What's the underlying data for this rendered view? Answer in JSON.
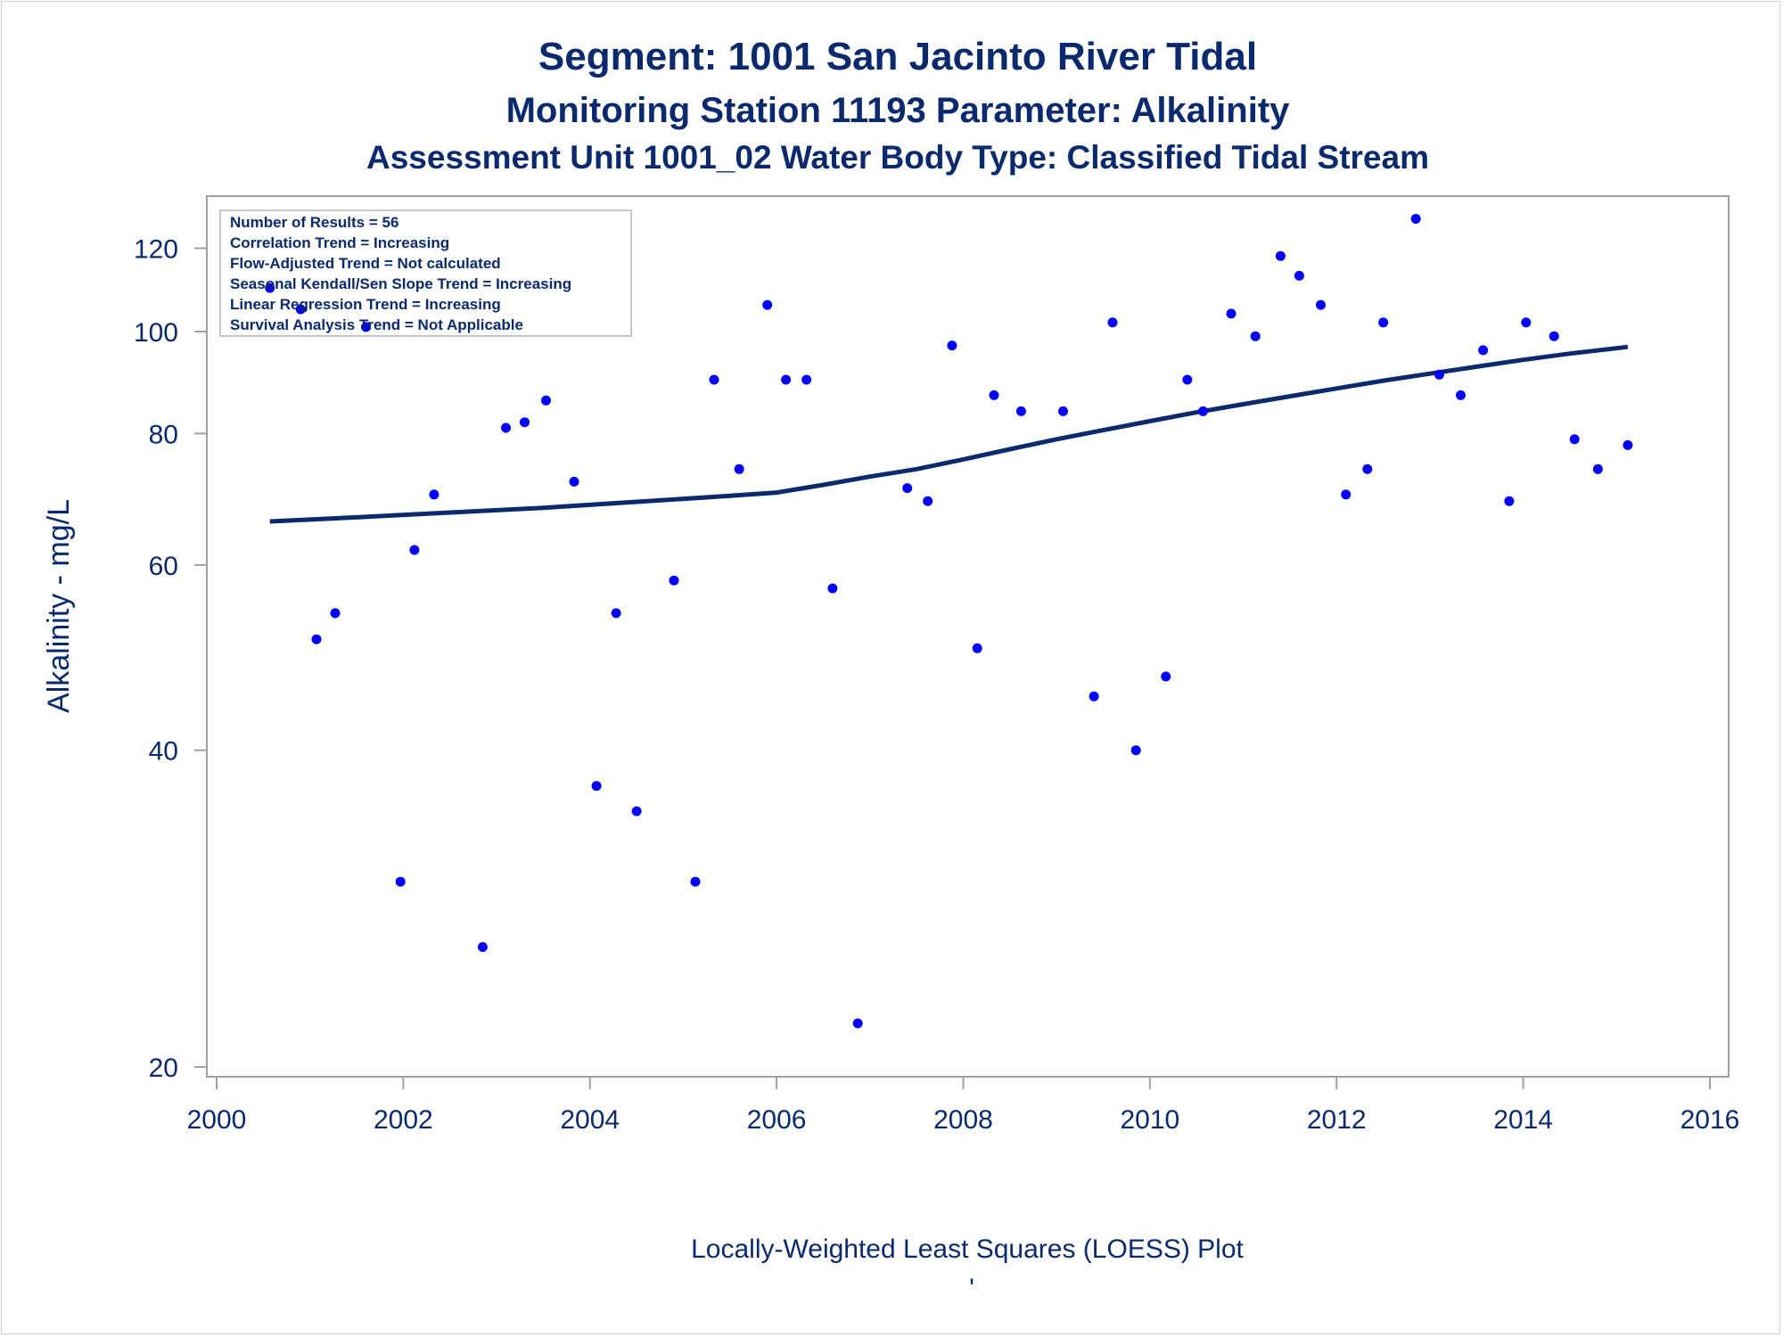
{
  "titles": {
    "line1": "Segment: 1001  San Jacinto River Tidal",
    "line2": "Monitoring Station 11193 Parameter: Alkalinity",
    "line3": "Assessment Unit 1001_02   Water Body Type: Classified Tidal Stream"
  },
  "stats_box": {
    "lines": [
      "Number of Results = 56",
      "Correlation Trend = Increasing",
      "Flow-Adjusted Trend = Not calculated",
      "Seasonal Kendall/Sen Slope Trend = Increasing",
      "Linear Regression Trend = Increasing",
      "Survival Analysis Trend = Not Applicable"
    ]
  },
  "footnote": "Locally-Weighted Least Squares (LOESS) Plot",
  "footnote_mark": "'",
  "colors": {
    "text": "#0b2a6e",
    "points": "#0000ff",
    "loess_line": "#0b2a6e",
    "axes": "#a0a0a0"
  },
  "chart_data": {
    "type": "scatter",
    "title": "Segment: 1001  San Jacinto River Tidal",
    "xlabel": "",
    "ylabel": "Alkalinity - mg/L",
    "xlim": [
      2000,
      2016
    ],
    "ylim": [
      20,
      130
    ],
    "y_scale": "log",
    "x_ticks": [
      2000,
      2002,
      2004,
      2006,
      2008,
      2010,
      2012,
      2014,
      2016
    ],
    "y_ticks": [
      20,
      40,
      60,
      80,
      100,
      120
    ],
    "grid": false,
    "legend": "none",
    "series": [
      {
        "type": "scatter",
        "points": [
          [
            2000.57,
            110
          ],
          [
            2000.9,
            105
          ],
          [
            2001.07,
            51
          ],
          [
            2001.27,
            54
          ],
          [
            2001.6,
            101
          ],
          [
            2001.97,
            30
          ],
          [
            2002.12,
            62
          ],
          [
            2002.33,
            70
          ],
          [
            2002.85,
            26
          ],
          [
            2003.1,
            81
          ],
          [
            2003.3,
            82
          ],
          [
            2003.53,
            86
          ],
          [
            2003.83,
            72
          ],
          [
            2004.07,
            37
          ],
          [
            2004.28,
            54
          ],
          [
            2004.5,
            35
          ],
          [
            2004.9,
            58
          ],
          [
            2005.13,
            30
          ],
          [
            2005.33,
            90
          ],
          [
            2005.6,
            74
          ],
          [
            2005.9,
            106
          ],
          [
            2006.1,
            90
          ],
          [
            2006.32,
            90
          ],
          [
            2006.6,
            57
          ],
          [
            2006.87,
            22
          ],
          [
            2007.4,
            71
          ],
          [
            2007.62,
            69
          ],
          [
            2007.88,
            97
          ],
          [
            2008.15,
            50
          ],
          [
            2008.33,
            87
          ],
          [
            2008.62,
            84
          ],
          [
            2009.07,
            84
          ],
          [
            2009.4,
            45
          ],
          [
            2009.6,
            102
          ],
          [
            2009.85,
            40
          ],
          [
            2010.17,
            47
          ],
          [
            2010.4,
            90
          ],
          [
            2010.57,
            84
          ],
          [
            2010.87,
            104
          ],
          [
            2011.13,
            99
          ],
          [
            2011.4,
            118
          ],
          [
            2011.6,
            113
          ],
          [
            2011.83,
            106
          ],
          [
            2012.1,
            70
          ],
          [
            2012.33,
            74
          ],
          [
            2012.5,
            102
          ],
          [
            2012.85,
            128
          ],
          [
            2013.1,
            91
          ],
          [
            2013.33,
            87
          ],
          [
            2013.57,
            96
          ],
          [
            2013.85,
            69
          ],
          [
            2014.03,
            102
          ],
          [
            2014.33,
            99
          ],
          [
            2014.55,
            79
          ],
          [
            2014.8,
            74
          ],
          [
            2015.12,
            78
          ]
        ]
      },
      {
        "type": "line",
        "points": [
          [
            2000.57,
            66
          ],
          [
            2001.5,
            66.6
          ],
          [
            2002.5,
            67.3
          ],
          [
            2003.5,
            68
          ],
          [
            2004.5,
            68.9
          ],
          [
            2005.5,
            69.8
          ],
          [
            2006,
            70.3
          ],
          [
            2006.5,
            71.5
          ],
          [
            2007,
            72.8
          ],
          [
            2007.5,
            74
          ],
          [
            2008,
            75.6
          ],
          [
            2008.5,
            77.3
          ],
          [
            2009,
            79
          ],
          [
            2009.5,
            80.6
          ],
          [
            2010,
            82.2
          ],
          [
            2010.5,
            83.8
          ],
          [
            2011,
            85.3
          ],
          [
            2011.5,
            86.8
          ],
          [
            2012,
            88.3
          ],
          [
            2012.5,
            89.8
          ],
          [
            2013,
            91.2
          ],
          [
            2013.5,
            92.6
          ],
          [
            2014,
            94
          ],
          [
            2014.5,
            95.3
          ],
          [
            2015.12,
            96.7
          ]
        ]
      }
    ]
  }
}
